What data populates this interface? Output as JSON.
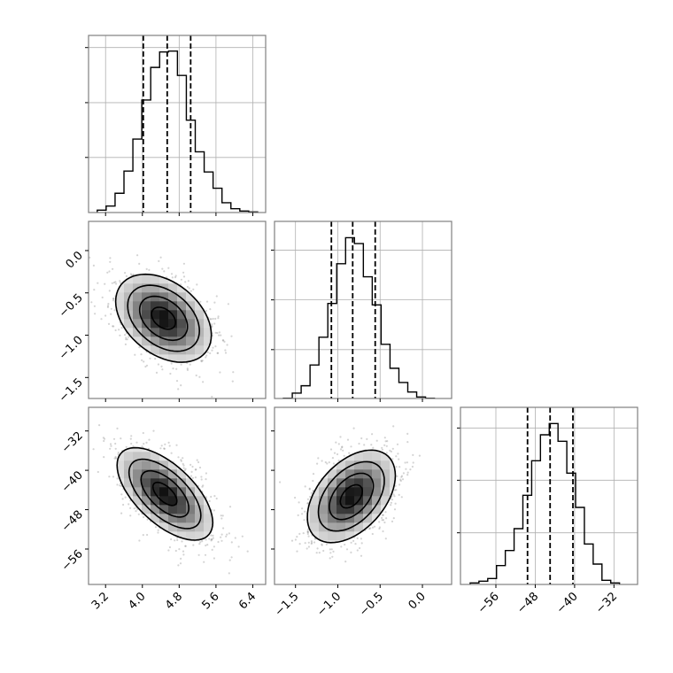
{
  "chart_data": {
    "type": "corner",
    "contour_levels_sigma": [
      0.5,
      1.0,
      1.5,
      2.0
    ],
    "parameters": [
      {
        "range": [
          2.83,
          6.68
        ],
        "ticks": [
          3.2,
          4.0,
          4.8,
          5.6,
          6.4
        ],
        "tick_labels": [
          "3.2",
          "4.0",
          "4.8",
          "5.6",
          "6.4"
        ],
        "quantiles": [
          4.02,
          4.54,
          5.05
        ],
        "hist": {
          "start": 3.019,
          "bin_width": 0.1937,
          "counts": [
            8,
            22,
            65,
            140,
            248,
            380,
            490,
            542,
            545,
            463,
            312,
            205,
            137,
            82,
            33,
            13,
            5,
            2
          ],
          "ylim": [
            0,
            598
          ],
          "yticks": [
            186,
            371,
            557
          ]
        }
      },
      {
        "range": [
          -1.748,
          0.345
        ],
        "ticks": [
          -1.5,
          -1.0,
          -0.5,
          0.0
        ],
        "tick_labels": [
          "−1.5",
          "−1.0",
          "−0.5",
          "0.0"
        ],
        "quantiles": [
          -1.076,
          -0.824,
          -0.558
        ],
        "hist": {
          "start": -1.643,
          "bin_width": 0.105,
          "counts": [
            1,
            18,
            43,
            113,
            207,
            321,
            455,
            543,
            523,
            411,
            316,
            183,
            102,
            54,
            22,
            5,
            1
          ],
          "ylim": [
            0,
            598
          ],
          "yticks": [
            165,
            333,
            501
          ]
        }
      },
      {
        "range": [
          -63.2,
          -27.2
        ],
        "ticks": [
          -56,
          -48,
          -40,
          -32
        ],
        "tick_labels": [
          "−56",
          "−48",
          "−40",
          "−32"
        ],
        "quantiles": [
          -49.57,
          -44.98,
          -40.34
        ],
        "hist": {
          "start": -61.23,
          "bin_width": 1.786,
          "counts": [
            5,
            11,
            20,
            64,
            115,
            189,
            302,
            419,
            507,
            545,
            485,
            377,
            261,
            137,
            69,
            14,
            5
          ],
          "ylim": [
            0,
            600
          ],
          "yticks": [
            175,
            353,
            530
          ]
        }
      }
    ],
    "pairs": [
      {
        "x": 0,
        "y": 1,
        "mean": [
          4.46,
          -0.8
        ],
        "sd": [
          0.52,
          0.26
        ],
        "corr": -0.38
      },
      {
        "x": 0,
        "y": 2,
        "mean": [
          4.49,
          -44.8
        ],
        "sd": [
          0.52,
          4.7
        ],
        "corr": -0.62
      },
      {
        "x": 1,
        "y": 2,
        "mean": [
          -0.84,
          -45.3
        ],
        "sd": [
          0.26,
          4.7
        ],
        "corr": 0.45
      }
    ],
    "colors": {
      "line": "#000000",
      "frame": "#808080",
      "grid": "#b0b0b0",
      "points": "#666666"
    }
  }
}
